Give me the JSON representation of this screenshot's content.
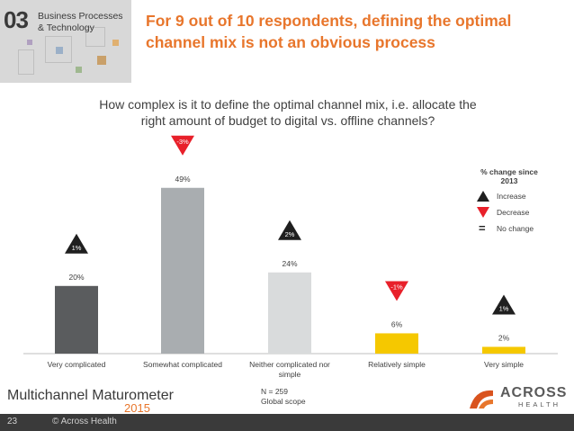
{
  "header": {
    "section_number": "03",
    "section_label_line1": "Business Processes",
    "section_label_line2": "& Technology",
    "headline_line1": "For 9 out of 10 respondents, defining the optimal",
    "headline_line2": "channel mix is not an obvious process"
  },
  "question": {
    "line1": "How complex is it to define the optimal channel mix, i.e. allocate the",
    "line2": "right amount of budget to digital vs. offline channels?"
  },
  "chart_data": {
    "type": "bar",
    "title": "How complex is it to define the optimal channel mix, i.e. allocate the right amount of budget to digital vs. offline channels?",
    "categories": [
      "Very complicated",
      "Somewhat complicated",
      "Neither complicated nor simple",
      "Relatively simple",
      "Very simple"
    ],
    "category_label_lines": [
      [
        "Very complicated"
      ],
      [
        "Somewhat complicated"
      ],
      [
        "Neither complicated nor",
        "simple"
      ],
      [
        "Relatively simple"
      ],
      [
        "Very simple"
      ]
    ],
    "values": [
      20,
      49,
      24,
      6,
      2
    ],
    "value_labels": [
      "20%",
      "49%",
      "24%",
      "6%",
      "2%"
    ],
    "bar_colors": [
      "#5a5c5e",
      "#a9adb0",
      "#d9dbdc",
      "#f5c800",
      "#f5c800"
    ],
    "changes": [
      {
        "label": "1%",
        "direction": "increase"
      },
      {
        "label": "-3%",
        "direction": "decrease"
      },
      {
        "label": "2%",
        "direction": "increase"
      },
      {
        "label": "-1%",
        "direction": "decrease"
      },
      {
        "label": "1%",
        "direction": "increase"
      }
    ],
    "ylim": [
      0,
      50
    ],
    "xlabel": "",
    "ylabel": ""
  },
  "legend": {
    "title_line1": "% change since",
    "title_line2": "2013",
    "increase": "Increase",
    "decrease": "Decrease",
    "no_change_symbol": "=",
    "no_change": "No change"
  },
  "colors": {
    "accent": "#e8762c",
    "increase": "#1f1f1f",
    "decrease": "#e8202a"
  },
  "footer": {
    "brand": "Multichannel Maturometer",
    "brand_year": "2015",
    "note_line1": "N = 259",
    "note_line2": "Global scope",
    "logo_text": "ACROSS",
    "logo_sub": "HEALTH",
    "page_number": "23",
    "copyright": "© Across Health"
  }
}
